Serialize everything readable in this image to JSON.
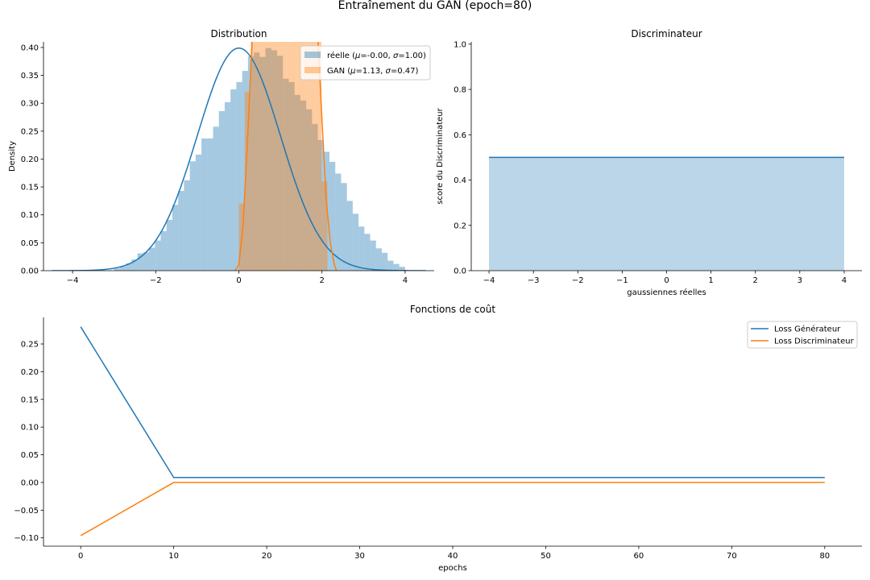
{
  "figure": {
    "suptitle": "Entraînement du GAN (epoch=80)"
  },
  "colors": {
    "blue": "#1f77b4",
    "orange": "#ff7f0e",
    "blue_fill": "#a6c8e2",
    "orange_fill": "#ffc599",
    "overlap_fill": "#d4b49a",
    "disc_fill": "#b9d4e8"
  },
  "chart_data": [
    {
      "type": "bar",
      "title": "Distribution",
      "xlabel": "",
      "ylabel": "Density",
      "xlim": [
        -4.7,
        4.7
      ],
      "ylim": [
        0,
        0.41
      ],
      "xticks": [
        -4,
        -2,
        0,
        2,
        4
      ],
      "yticks": [
        0.0,
        0.05,
        0.1,
        0.15,
        0.2,
        0.25,
        0.3,
        0.35,
        0.4
      ],
      "grid": false,
      "legend_position": "top-right",
      "series": [
        {
          "name": "réelle ($\\mu$=-0.00, $\\sigma$=1.00)",
          "legend": [
            "réelle (",
            "μ",
            "=-0.00, ",
            "σ",
            "=1.00)"
          ],
          "hist_bin_width": 0.14,
          "hist_edges_start": -3.0,
          "hist_values": [
            0.004,
            0.008,
            0.013,
            0.02,
            0.031,
            0.033,
            0.041,
            0.054,
            0.071,
            0.091,
            0.118,
            0.143,
            0.162,
            0.196,
            0.208,
            0.237,
            0.237,
            0.258,
            0.286,
            0.302,
            0.325,
            0.338,
            0.358,
            0.384,
            0.391,
            0.383,
            0.399,
            0.395,
            0.385,
            0.344,
            0.338,
            0.315,
            0.305,
            0.289,
            0.263,
            0.234,
            0.213,
            0.195,
            0.174,
            0.157,
            0.125,
            0.102,
            0.079,
            0.066,
            0.054,
            0.04,
            0.032,
            0.018,
            0.012,
            0.007
          ],
          "kde_mu": 0.0,
          "kde_sigma": 1.0
        },
        {
          "name": "GAN ($\\mu$=1.13, $\\sigma$=0.47)",
          "legend": [
            "GAN (",
            "μ",
            "=1.13, ",
            "σ",
            "=0.47)"
          ],
          "hist_bin_width": 0.142,
          "hist_edges_start": 0.0,
          "hist_values": [
            0.12,
            0.32,
            0.55,
            0.72,
            0.82,
            0.87,
            0.89,
            0.88,
            0.84,
            0.78,
            0.71,
            0.62,
            0.52,
            0.41,
            0.16
          ],
          "kde_points": [
            [
              -0.1,
              0.0
            ],
            [
              0.0,
              0.01
            ],
            [
              0.1,
              0.08
            ],
            [
              0.2,
              0.22
            ],
            [
              0.3,
              0.38
            ],
            [
              0.4,
              0.52
            ],
            [
              0.5,
              0.63
            ],
            [
              0.6,
              0.72
            ],
            [
              0.8,
              0.82
            ],
            [
              1.0,
              0.86
            ],
            [
              1.2,
              0.85
            ],
            [
              1.4,
              0.79
            ],
            [
              1.6,
              0.69
            ],
            [
              1.8,
              0.53
            ],
            [
              1.9,
              0.42
            ],
            [
              2.0,
              0.27
            ],
            [
              2.1,
              0.13
            ],
            [
              2.2,
              0.05
            ],
            [
              2.3,
              0.01
            ],
            [
              2.35,
              0.0
            ]
          ]
        }
      ]
    },
    {
      "type": "area",
      "title": "Discriminateur",
      "xlabel": "gaussiennes réelles",
      "ylabel": "score du Discriminateur",
      "xlim": [
        -4.4,
        4.4
      ],
      "ylim": [
        0,
        1.01
      ],
      "xticks": [
        -4,
        -3,
        -2,
        -1,
        0,
        1,
        2,
        3,
        4
      ],
      "yticks": [
        0.0,
        0.2,
        0.4,
        0.6,
        0.8,
        1.0
      ],
      "grid": false,
      "series": [
        {
          "x": [
            -4,
            4
          ],
          "values": [
            0.5,
            0.5
          ]
        }
      ]
    },
    {
      "type": "line",
      "title": "Fonctions de coût",
      "xlabel": "epochs",
      "ylabel": "",
      "xlim": [
        -4,
        84
      ],
      "ylim": [
        -0.115,
        0.298
      ],
      "xticks": [
        0,
        10,
        20,
        30,
        40,
        50,
        60,
        70,
        80
      ],
      "yticks": [
        -0.1,
        -0.05,
        0.0,
        0.05,
        0.1,
        0.15,
        0.2,
        0.25
      ],
      "grid": false,
      "legend_position": "top-right",
      "series": [
        {
          "name": "Loss Générateur",
          "x": [
            0,
            10,
            80
          ],
          "values": [
            0.281,
            0.009,
            0.009
          ]
        },
        {
          "name": "Loss Discriminateur",
          "x": [
            0,
            10,
            80
          ],
          "values": [
            -0.096,
            0.0,
            0.0
          ]
        }
      ]
    }
  ]
}
